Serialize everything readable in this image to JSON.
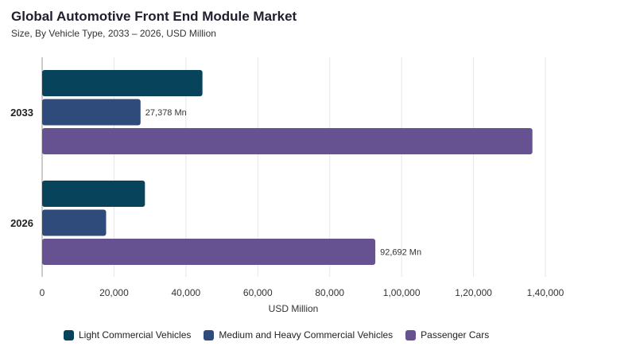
{
  "chart_data": {
    "type": "bar",
    "orientation": "horizontal",
    "title": "Global Automotive Front End Module Market",
    "subtitle": "Size, By Vehicle Type, 2033 – 2026, USD Million",
    "xlabel": "USD Million",
    "ylabel": "",
    "xlim": [
      0,
      140000
    ],
    "x_ticks": [
      0,
      20000,
      40000,
      60000,
      80000,
      100000,
      120000,
      140000
    ],
    "x_tick_labels": [
      "0",
      "20,000",
      "40,000",
      "60,000",
      "80,000",
      "1,00,000",
      "1,20,000",
      "1,40,000"
    ],
    "categories": [
      "2033",
      "2026"
    ],
    "series": [
      {
        "name": "Light Commercial Vehicles",
        "color": "#07445c",
        "values": [
          44600,
          28600
        ],
        "labels": [
          "",
          ""
        ]
      },
      {
        "name": "Medium and Heavy Commercial Vehicles",
        "color": "#2f4b7c",
        "values": [
          27378,
          17800
        ],
        "labels": [
          "27,378 Mn",
          ""
        ]
      },
      {
        "name": "Passenger Cars",
        "color": "#665191",
        "values": [
          136400,
          92692
        ],
        "labels": [
          "",
          "92,692 Mn"
        ]
      }
    ],
    "grid": "vertical",
    "legend_position": "bottom"
  }
}
